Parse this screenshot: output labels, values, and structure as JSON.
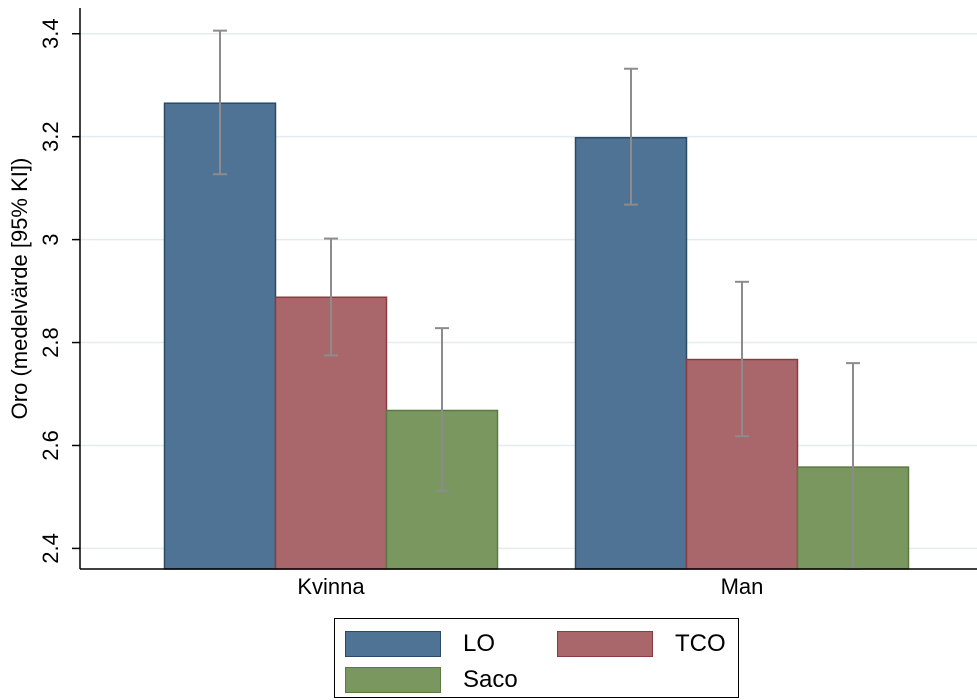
{
  "chart_data": {
    "type": "bar",
    "title": "",
    "xlabel": "",
    "ylabel": "Oro (medelvärde [95% KI])",
    "ylim": [
      2.36,
      3.45
    ],
    "yticks": [
      "2.4",
      "2.6",
      "2.8",
      "3",
      "3.2",
      "3.4"
    ],
    "grid": true,
    "legend_position": "bottom",
    "categories": [
      "Kvinna",
      "Man"
    ],
    "series": [
      {
        "name": "LO",
        "color": "#4f7394",
        "edge": "#2c4a68",
        "values": [
          3.265,
          3.198
        ],
        "ci_low": [
          3.127,
          3.068
        ],
        "ci_high": [
          3.406,
          3.332
        ]
      },
      {
        "name": "TCO",
        "color": "#a9676b",
        "edge": "#8c3a42",
        "values": [
          2.888,
          2.767
        ],
        "ci_low": [
          2.775,
          2.618
        ],
        "ci_high": [
          3.002,
          2.918
        ]
      },
      {
        "name": "Saco",
        "color": "#7a9760",
        "edge": "#5a7a42",
        "values": [
          2.668,
          2.558
        ],
        "ci_low": [
          2.512,
          2.36
        ],
        "ci_high": [
          2.828,
          2.76
        ]
      }
    ]
  }
}
